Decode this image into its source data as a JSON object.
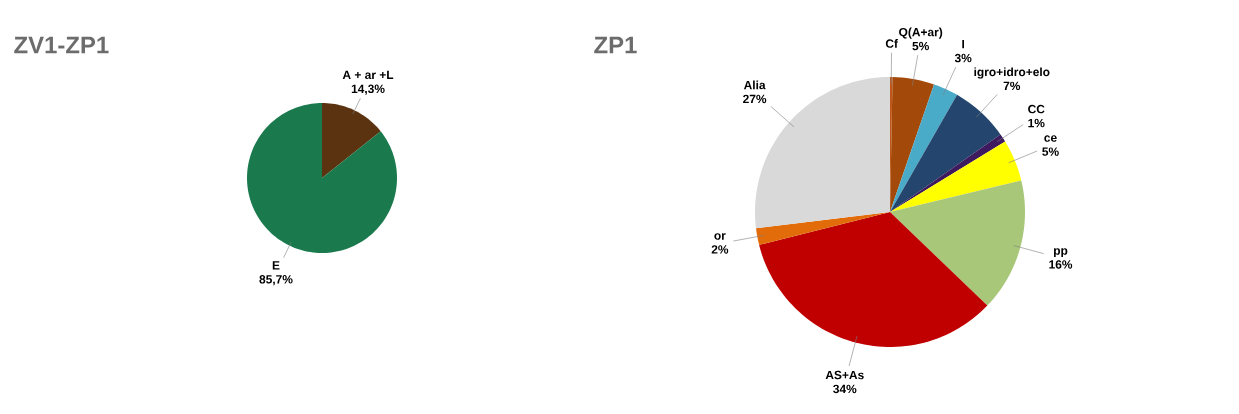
{
  "chart_data": [
    {
      "type": "pie",
      "title": "ZV1-ZP1",
      "categories": [
        "A + ar +L",
        "E"
      ],
      "values": [
        14.3,
        85.7
      ],
      "colors": [
        "#5c3310",
        "#1a7a4e"
      ],
      "value_labels": [
        "14,3%",
        "85,7%"
      ]
    },
    {
      "type": "pie",
      "title": "ZP1",
      "categories": [
        "Cf",
        "Q(A+ar)",
        "I",
        "igro+idro+elo",
        "CC",
        "ce",
        "pp",
        "AS+As",
        "or",
        "Alia"
      ],
      "values": [
        0.3,
        5,
        3,
        7,
        1,
        5,
        16,
        34,
        2,
        27
      ],
      "colors": [
        "#c0561a",
        "#a34a0a",
        "#4aabc8",
        "#24466e",
        "#3e1a5e",
        "#ffff00",
        "#a8c778",
        "#c00000",
        "#e36c0a",
        "#d9d9d9"
      ],
      "value_labels": [
        null,
        "5%",
        "3%",
        "7%",
        "1%",
        "5%",
        "16%",
        "34%",
        "2%",
        "27%"
      ]
    }
  ]
}
